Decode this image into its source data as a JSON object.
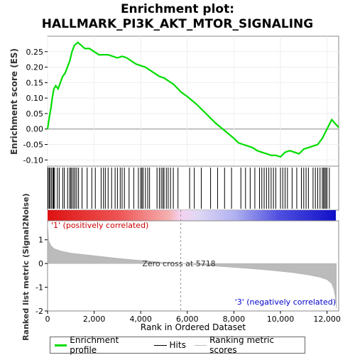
{
  "chart_data": {
    "type": "line",
    "title_line1": "Enrichment plot:",
    "title_line2": "HALLMARK_PI3K_AKT_MTOR_SIGNALING",
    "es_panel": {
      "ylabel": "Enrichment score (ES)",
      "ylim": [
        -0.12,
        0.3
      ],
      "yticks": [
        "0.25",
        "0.20",
        "0.15",
        "0.10",
        "0.05",
        "0.00",
        "-0.05",
        "-0.10"
      ],
      "ytick_values": [
        0.25,
        0.2,
        0.15,
        0.1,
        0.05,
        0.0,
        -0.05,
        -0.1
      ],
      "line_color": "#00dd00",
      "series": [
        {
          "x": [
            0,
            80,
            150,
            200,
            270,
            350,
            450,
            550,
            650,
            750,
            850,
            950,
            1050,
            1150,
            1300,
            1450,
            1600,
            1800,
            2000,
            2200,
            2400,
            2600,
            2800,
            3000,
            3200,
            3400,
            3600,
            3800,
            4000,
            4200,
            4400,
            4600,
            4800,
            5000,
            5200,
            5400,
            5600,
            5718,
            6000,
            6400,
            6800,
            7200,
            7600,
            8000,
            8200,
            8400,
            8600,
            8800,
            9000,
            9200,
            9400,
            9600,
            9800,
            10000,
            10200,
            10400,
            10600,
            10800,
            11000,
            11200,
            11400,
            11600,
            11800,
            12000,
            12200,
            12500
          ],
          "y": [
            0.0,
            0.04,
            0.07,
            0.1,
            0.13,
            0.14,
            0.13,
            0.15,
            0.17,
            0.18,
            0.2,
            0.22,
            0.25,
            0.27,
            0.28,
            0.27,
            0.26,
            0.26,
            0.25,
            0.24,
            0.24,
            0.24,
            0.235,
            0.23,
            0.235,
            0.23,
            0.22,
            0.21,
            0.205,
            0.2,
            0.19,
            0.18,
            0.17,
            0.165,
            0.155,
            0.145,
            0.13,
            0.12,
            0.105,
            0.08,
            0.05,
            0.02,
            -0.005,
            -0.03,
            -0.045,
            -0.05,
            -0.055,
            -0.06,
            -0.07,
            -0.075,
            -0.08,
            -0.085,
            -0.085,
            -0.09,
            -0.075,
            -0.07,
            -0.075,
            -0.08,
            -0.065,
            -0.06,
            -0.055,
            -0.05,
            -0.03,
            0.0,
            0.03,
            0.005
          ]
        }
      ]
    },
    "hits": [
      20,
      70,
      110,
      170,
      230,
      260,
      300,
      420,
      500,
      650,
      720,
      860,
      950,
      1000,
      1050,
      1120,
      1180,
      1250,
      1330,
      1480,
      1700,
      1900,
      2050,
      2300,
      2400,
      2480,
      2600,
      2750,
      2900,
      3000,
      3120,
      3200,
      3300,
      3500,
      3700,
      3900,
      4000,
      4050,
      4100,
      4200,
      4300,
      4380,
      4700,
      4800,
      4880,
      4950,
      5000,
      5100,
      5180,
      5280,
      5400,
      5600,
      6100,
      6300,
      6600,
      7000,
      7300,
      7600,
      7900,
      8300,
      8500,
      8700,
      8900,
      9100,
      9200,
      9300,
      9400,
      9500,
      9600,
      9700,
      9800,
      10000,
      10100,
      10200,
      10300,
      10500,
      10700,
      10900,
      11000,
      11100,
      11200,
      11400,
      11500,
      11600,
      11700,
      11800,
      11850,
      11900,
      11950,
      12000,
      12100
    ],
    "ranked_panel": {
      "ylabel": "Ranked list metric (Signal2Noise)",
      "ylim": [
        -2.0,
        1.8
      ],
      "yticks": [
        "1",
        "0",
        "-1",
        "-2"
      ],
      "ytick_values": [
        1,
        0,
        -1,
        -2
      ],
      "zero_cross_label": "Zero cross at 5718",
      "zero_cross": 5718,
      "pos_label": "'1' (positively correlated)",
      "neg_label": "'3' (negatively correlated)",
      "profile": {
        "x": [
          0,
          50,
          150,
          300,
          600,
          1000,
          2000,
          3000,
          4000,
          5000,
          5718,
          6500,
          7500,
          8500,
          9500,
          10500,
          11200,
          11700,
          12000,
          12200,
          12300,
          12350,
          12400
        ],
        "y": [
          1.7,
          0.95,
          0.75,
          0.62,
          0.52,
          0.44,
          0.33,
          0.22,
          0.13,
          0.05,
          0.0,
          -0.06,
          -0.13,
          -0.2,
          -0.28,
          -0.38,
          -0.48,
          -0.58,
          -0.68,
          -0.85,
          -1.1,
          -1.4,
          -1.9
        ]
      }
    },
    "xaxis": {
      "xlabel": "Rank in Ordered Dataset",
      "xlim": [
        0,
        12500
      ],
      "xticks": [
        "0",
        "2,000",
        "4,000",
        "6,000",
        "8,000",
        "10,000",
        "12,000"
      ],
      "xtick_values": [
        0,
        2000,
        4000,
        6000,
        8000,
        10000,
        12000
      ]
    },
    "legend": {
      "items": [
        {
          "label": "Enrichment profile",
          "color": "#00dd00"
        },
        {
          "label": "Hits",
          "color": "#000000"
        },
        {
          "label": "Ranking metric scores",
          "color": "#bbbbbb"
        }
      ]
    }
  }
}
